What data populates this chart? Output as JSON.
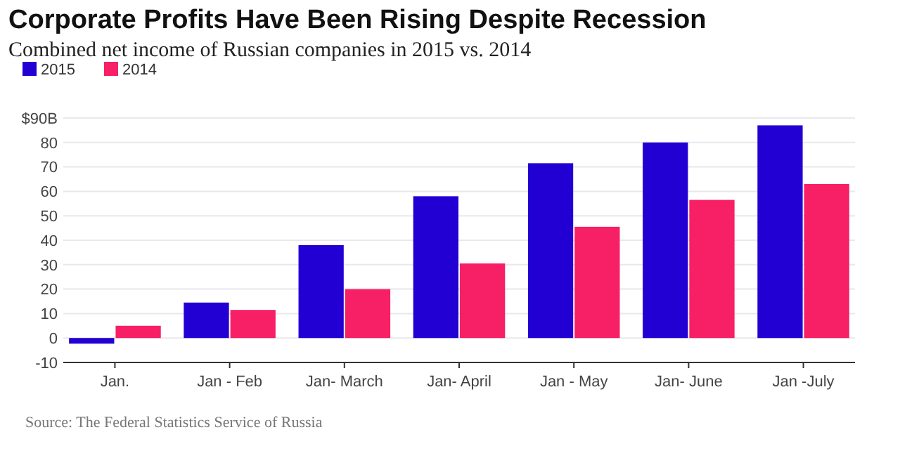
{
  "chart_data": {
    "type": "bar",
    "title": "Corporate Profits Have Been Rising Despite Recession",
    "subtitle": "Combined net income of Russian companies in 2015 vs. 2014",
    "categories": [
      "Jan.",
      "Jan - Feb",
      "Jan- March",
      "Jan- April",
      "Jan - May",
      "Jan- June",
      "Jan -July"
    ],
    "series": [
      {
        "name": "2015",
        "color": "#2200d4",
        "values": [
          -2.3,
          14.5,
          38,
          58,
          71.5,
          80,
          87
        ]
      },
      {
        "name": "2014",
        "color": "#f71f66",
        "values": [
          5,
          11.5,
          20,
          30.5,
          45.5,
          56.5,
          63
        ]
      }
    ],
    "ylim": [
      -10,
      90
    ],
    "yticks": [
      -10,
      0,
      10,
      20,
      30,
      40,
      50,
      60,
      70,
      80,
      {
        "value": 90,
        "label": "$90B"
      }
    ],
    "grid": "y",
    "legend": "top left",
    "annotations": [
      "Source: The Federal Statistics Service of Russia"
    ]
  }
}
